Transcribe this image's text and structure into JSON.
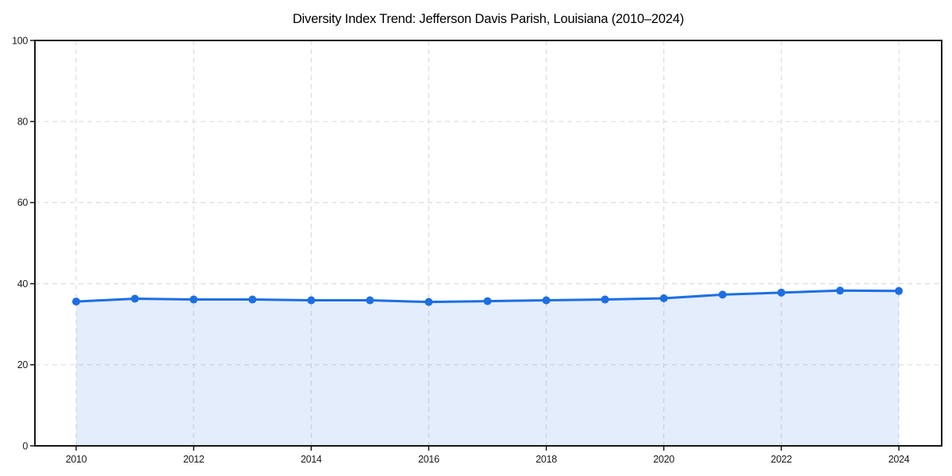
{
  "chart_data": {
    "type": "area",
    "title": "Diversity Index Trend: Jefferson Davis Parish, Louisiana (2010–2024)",
    "xlabel": "",
    "ylabel": "",
    "x": [
      2010,
      2011,
      2012,
      2013,
      2014,
      2015,
      2016,
      2017,
      2018,
      2019,
      2020,
      2021,
      2022,
      2023,
      2024
    ],
    "series": [
      {
        "name": "Diversity Index",
        "values": [
          35.6,
          36.3,
          36.1,
          36.1,
          35.9,
          35.9,
          35.5,
          35.7,
          35.9,
          36.1,
          36.4,
          37.3,
          37.8,
          38.3,
          38.2
        ]
      }
    ],
    "xlim": [
      2009.3,
      2024.7
    ],
    "ylim": [
      0,
      100
    ],
    "xticks": [
      2010,
      2012,
      2014,
      2016,
      2018,
      2020,
      2022,
      2024
    ],
    "yticks": [
      0,
      20,
      40,
      60,
      80,
      100
    ],
    "grid": "dashed",
    "legend": "none",
    "colors": {
      "line": "#1d6fe2",
      "marker": "#1d6fe2",
      "fill": "rgba(29,111,228,0.12)",
      "gridline": "#dcdcdc",
      "frame": "#181818",
      "tick_label": "#1a1a1a",
      "background": "#ffffff"
    }
  }
}
